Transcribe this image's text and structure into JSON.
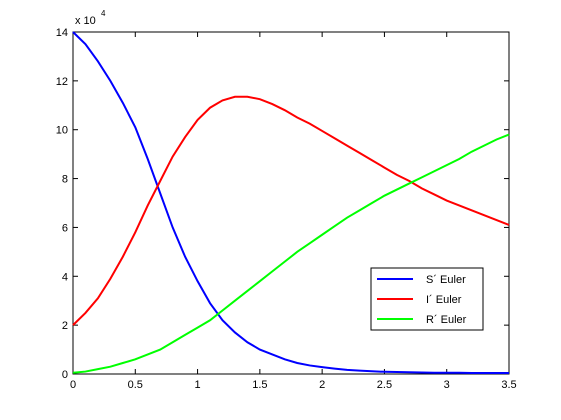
{
  "chart_data": {
    "type": "line",
    "axis_multiplier": {
      "base": "x 10",
      "exponent": "4"
    },
    "x": [
      0,
      0.1,
      0.2,
      0.3,
      0.4,
      0.5,
      0.6,
      0.7,
      0.8,
      0.9,
      1.0,
      1.1,
      1.2,
      1.3,
      1.4,
      1.5,
      1.6,
      1.7,
      1.8,
      1.9,
      2.0,
      2.1,
      2.2,
      2.3,
      2.4,
      2.5,
      2.6,
      2.7,
      2.8,
      2.9,
      3.0,
      3.1,
      3.2,
      3.3,
      3.4,
      3.5
    ],
    "series": [
      {
        "name": "S´ Euler",
        "color": "#0000ff",
        "values": [
          14,
          13.5,
          12.8,
          12.0,
          11.1,
          10.1,
          8.8,
          7.4,
          6.0,
          4.8,
          3.8,
          2.9,
          2.2,
          1.7,
          1.3,
          1.0,
          0.8,
          0.6,
          0.45,
          0.35,
          0.28,
          0.22,
          0.17,
          0.14,
          0.11,
          0.09,
          0.08,
          0.07,
          0.06,
          0.05,
          0.05,
          0.05,
          0.04,
          0.04,
          0.04,
          0.04
        ]
      },
      {
        "name": "I´ Euler",
        "color": "#ff0000",
        "values": [
          2.0,
          2.5,
          3.1,
          3.9,
          4.8,
          5.8,
          6.9,
          7.9,
          8.9,
          9.7,
          10.4,
          10.9,
          11.2,
          11.35,
          11.35,
          11.25,
          11.05,
          10.8,
          10.5,
          10.25,
          9.95,
          9.65,
          9.35,
          9.05,
          8.75,
          8.45,
          8.15,
          7.9,
          7.6,
          7.35,
          7.1,
          6.9,
          6.7,
          6.5,
          6.3,
          6.1
        ]
      },
      {
        "name": "R´ Euler",
        "color": "#00ff00",
        "values": [
          0.05,
          0.1,
          0.2,
          0.3,
          0.45,
          0.6,
          0.8,
          1.0,
          1.3,
          1.6,
          1.9,
          2.2,
          2.6,
          3.0,
          3.4,
          3.8,
          4.2,
          4.6,
          5.0,
          5.35,
          5.7,
          6.05,
          6.4,
          6.7,
          7.0,
          7.3,
          7.55,
          7.8,
          8.05,
          8.3,
          8.55,
          8.8,
          9.1,
          9.35,
          9.6,
          9.8
        ]
      }
    ],
    "xlim": [
      0,
      3.5
    ],
    "xticks": [
      0,
      0.5,
      1,
      1.5,
      2,
      2.5,
      3,
      3.5
    ],
    "ylim": [
      0,
      14
    ],
    "yticks": [
      0,
      2,
      4,
      6,
      8,
      10,
      12,
      14
    ],
    "legend": "lower right"
  }
}
